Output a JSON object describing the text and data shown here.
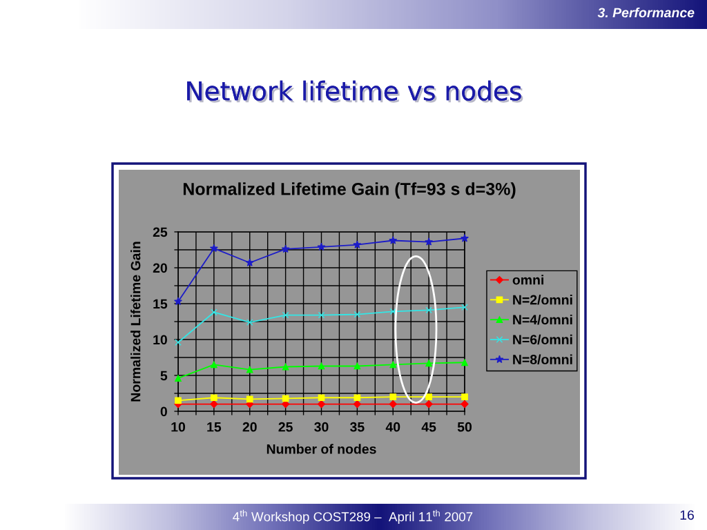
{
  "chart_data": {
    "type": "line",
    "title": "Network lifetime vs nodes",
    "subtitle": "Normalized Lifetime Gain (Tf=93 s d=3%)",
    "xlabel": "Number of nodes",
    "ylabel": "Normalized Lifetime Gain",
    "x": [
      10,
      15,
      20,
      25,
      30,
      35,
      40,
      45,
      50
    ],
    "series": [
      {
        "name": "omni",
        "color": "#ff0000",
        "marker": "diamond",
        "values": [
          1.0,
          1.0,
          1.0,
          1.0,
          1.0,
          1.0,
          1.0,
          1.0,
          1.0
        ]
      },
      {
        "name": "N=2/omni",
        "color": "#ffff00",
        "marker": "square",
        "values": [
          1.5,
          1.9,
          1.7,
          1.8,
          1.9,
          1.9,
          2.0,
          2.0,
          2.0
        ]
      },
      {
        "name": "N=4/omni",
        "color": "#00ff00",
        "marker": "triangle",
        "values": [
          4.6,
          6.5,
          5.8,
          6.2,
          6.3,
          6.3,
          6.5,
          6.7,
          6.8
        ]
      },
      {
        "name": "N=6/omni",
        "color": "#33e6e6",
        "marker": "cross",
        "values": [
          9.6,
          13.8,
          12.4,
          13.4,
          13.4,
          13.5,
          13.9,
          14.1,
          14.5
        ]
      },
      {
        "name": "N=8/omni",
        "color": "#1c1cc8",
        "marker": "star",
        "values": [
          15.3,
          22.7,
          20.7,
          22.6,
          22.9,
          23.2,
          23.8,
          23.6,
          24.1
        ]
      }
    ],
    "xlim": [
      10,
      50
    ],
    "ylim": [
      0,
      25
    ],
    "xticks": [
      10,
      {
        "value": 12.5,
        "label": null
      },
      15,
      {
        "value": 17.5,
        "label": null
      },
      20,
      {
        "value": 22.5,
        "label": null
      },
      25,
      {
        "value": 27.5,
        "label": null
      },
      30,
      {
        "value": 32.5,
        "label": null
      },
      35,
      {
        "value": 37.5,
        "label": null
      },
      40,
      {
        "value": 42.5,
        "label": null
      },
      45,
      {
        "value": 47.5,
        "label": null
      },
      50
    ],
    "yticks": [
      0,
      {
        "value": 2.5,
        "label": null
      },
      5,
      {
        "value": 7.5,
        "label": null
      },
      10,
      {
        "value": 12.5,
        "label": null
      },
      15,
      {
        "value": 17.5,
        "label": null
      },
      20,
      {
        "value": 22.5,
        "label": null
      },
      25
    ],
    "grid": true,
    "legend": "right",
    "annotations": [
      "3. Performance",
      "4$^{th}$ Workshop COST289 –  April 11$^{th}$ 2007",
      "16"
    ]
  }
}
